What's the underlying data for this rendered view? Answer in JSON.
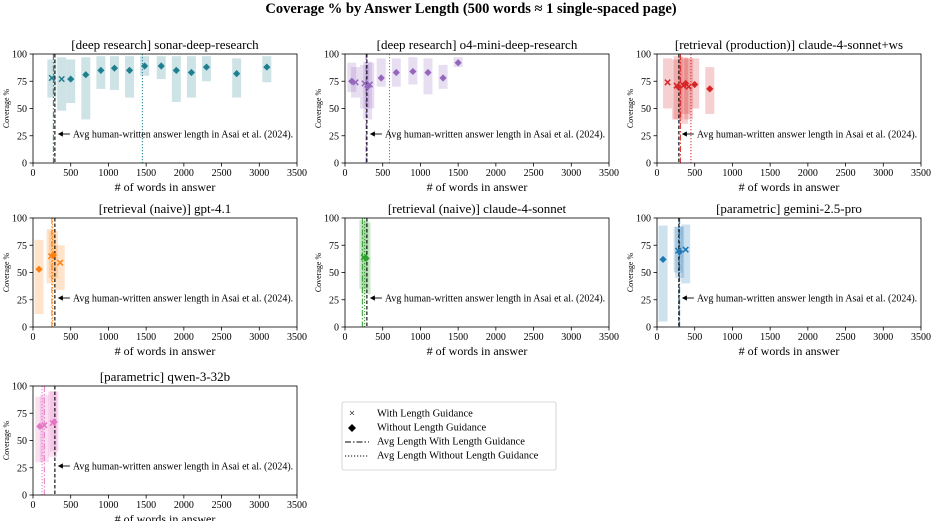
{
  "figure_title": "Coverage % by Answer Length (500 words ≈ 1 single-spaced page)",
  "annotation_text": "Avg human-written answer length in Asai et al. (2024).",
  "human_avg_words": 290,
  "legend": {
    "with_guidance": "With Length Guidance",
    "without_guidance": "Without Length Guidance",
    "avg_with": "Avg Length With Length Guidance",
    "avg_without": "Avg Length Without Length Guidance"
  },
  "chart_data": [
    {
      "type": "scatter",
      "title": "[deep research] sonar-deep-research",
      "xlabel": "# of words in answer",
      "ylabel": "Coverage %",
      "xlim": [
        0,
        3500
      ],
      "ylim": [
        0,
        100
      ],
      "xticks": [
        0,
        500,
        1000,
        1500,
        2000,
        2500,
        3000,
        3500
      ],
      "yticks": [
        0,
        25,
        50,
        75,
        100
      ],
      "color": "#1f7f8f",
      "avg_with": 270,
      "avg_without": 1450,
      "with_guidance": [
        {
          "x": 250,
          "y": 78,
          "lo": 60,
          "hi": 95
        },
        {
          "x": 380,
          "y": 77,
          "lo": 48,
          "hi": 97
        }
      ],
      "without_guidance": [
        {
          "x": 500,
          "y": 77,
          "lo": 55,
          "hi": 95
        },
        {
          "x": 700,
          "y": 81,
          "lo": 40,
          "hi": 97
        },
        {
          "x": 900,
          "y": 85,
          "lo": 68,
          "hi": 98
        },
        {
          "x": 1080,
          "y": 87,
          "lo": 67,
          "hi": 98
        },
        {
          "x": 1280,
          "y": 85,
          "lo": 60,
          "hi": 98
        },
        {
          "x": 1480,
          "y": 89,
          "lo": 80,
          "hi": 98
        },
        {
          "x": 1700,
          "y": 89,
          "lo": 77,
          "hi": 98
        },
        {
          "x": 1900,
          "y": 85,
          "lo": 56,
          "hi": 98
        },
        {
          "x": 2100,
          "y": 83,
          "lo": 60,
          "hi": 98
        },
        {
          "x": 2300,
          "y": 88,
          "lo": 75,
          "hi": 98
        },
        {
          "x": 2700,
          "y": 82,
          "lo": 60,
          "hi": 96
        },
        {
          "x": 3100,
          "y": 88,
          "lo": 74,
          "hi": 98
        }
      ]
    },
    {
      "type": "scatter",
      "title": "[deep research] o4-mini-deep-research",
      "xlabel": "# of words in answer",
      "ylabel": "Coverage %",
      "xlim": [
        0,
        3500
      ],
      "ylim": [
        0,
        100
      ],
      "xticks": [
        0,
        500,
        1000,
        1500,
        2000,
        2500,
        3000,
        3500
      ],
      "yticks": [
        0,
        25,
        50,
        75,
        100
      ],
      "color": "#9467bd",
      "avg_with": 280,
      "avg_without": 590,
      "with_guidance": [
        {
          "x": 140,
          "y": 74,
          "lo": 60,
          "hi": 88
        },
        {
          "x": 260,
          "y": 73,
          "lo": 50,
          "hi": 90
        },
        {
          "x": 330,
          "y": 72,
          "lo": 50,
          "hi": 92
        }
      ],
      "without_guidance": [
        {
          "x": 90,
          "y": 75,
          "lo": 65,
          "hi": 92
        },
        {
          "x": 300,
          "y": 70,
          "lo": 40,
          "hi": 93
        },
        {
          "x": 480,
          "y": 78,
          "lo": 70,
          "hi": 96
        },
        {
          "x": 680,
          "y": 83,
          "lo": 70,
          "hi": 96
        },
        {
          "x": 900,
          "y": 84,
          "lo": 72,
          "hi": 97
        },
        {
          "x": 1100,
          "y": 83,
          "lo": 63,
          "hi": 96
        },
        {
          "x": 1300,
          "y": 78,
          "lo": 68,
          "hi": 90
        },
        {
          "x": 1500,
          "y": 92,
          "lo": 88,
          "hi": 97
        }
      ]
    },
    {
      "type": "scatter",
      "title": "[retrieval (production)] claude-4-sonnet+ws",
      "xlabel": "# of words in answer",
      "ylabel": "Coverage %",
      "xlim": [
        0,
        3500
      ],
      "ylim": [
        0,
        100
      ],
      "xticks": [
        0,
        500,
        1000,
        1500,
        2000,
        2500,
        3000,
        3500
      ],
      "yticks": [
        0,
        25,
        50,
        75,
        100
      ],
      "color": "#d62728",
      "avg_with": 310,
      "avg_without": 450,
      "with_guidance": [
        {
          "x": 140,
          "y": 74,
          "lo": 50,
          "hi": 96
        },
        {
          "x": 260,
          "y": 71,
          "lo": 40,
          "hi": 95
        },
        {
          "x": 350,
          "y": 71,
          "lo": 36,
          "hi": 97
        },
        {
          "x": 420,
          "y": 70,
          "lo": 40,
          "hi": 96
        }
      ],
      "without_guidance": [
        {
          "x": 280,
          "y": 70,
          "lo": 40,
          "hi": 98
        },
        {
          "x": 380,
          "y": 73,
          "lo": 45,
          "hi": 96
        },
        {
          "x": 500,
          "y": 72,
          "lo": 50,
          "hi": 96
        },
        {
          "x": 700,
          "y": 68,
          "lo": 45,
          "hi": 88
        }
      ]
    },
    {
      "type": "scatter",
      "title": "[retrieval (naive)] gpt-4.1",
      "xlabel": "# of words in answer",
      "ylabel": "Coverage %",
      "xlim": [
        0,
        3500
      ],
      "ylim": [
        0,
        100
      ],
      "xticks": [
        0,
        500,
        1000,
        1500,
        2000,
        2500,
        3000,
        3500
      ],
      "yticks": [
        0,
        25,
        50,
        75,
        100
      ],
      "color": "#ff7f0e",
      "avg_with": 250,
      "avg_without": 260,
      "with_guidance": [
        {
          "x": 240,
          "y": 65,
          "lo": 40,
          "hi": 90
        },
        {
          "x": 360,
          "y": 59,
          "lo": 34,
          "hi": 75
        }
      ],
      "without_guidance": [
        {
          "x": 80,
          "y": 53,
          "lo": 12,
          "hi": 80
        },
        {
          "x": 270,
          "y": 66,
          "lo": 45,
          "hi": 88
        }
      ]
    },
    {
      "type": "scatter",
      "title": "[retrieval (naive)] claude-4-sonnet",
      "xlabel": "# of words in answer",
      "ylabel": "Coverage %",
      "xlim": [
        0,
        3500
      ],
      "ylim": [
        0,
        100
      ],
      "xticks": [
        0,
        500,
        1000,
        1500,
        2000,
        2500,
        3000,
        3500
      ],
      "yticks": [
        0,
        25,
        50,
        75,
        100
      ],
      "color": "#2ca02c",
      "avg_with": 230,
      "avg_without": 260,
      "with_guidance": [
        {
          "x": 250,
          "y": 64,
          "lo": 35,
          "hi": 98
        }
      ],
      "without_guidance": [
        {
          "x": 280,
          "y": 63,
          "lo": 30,
          "hi": 96
        }
      ]
    },
    {
      "type": "scatter",
      "title": "[parametric] gemini-2.5-pro",
      "xlabel": "# of words in answer",
      "ylabel": "Coverage %",
      "xlim": [
        0,
        3500
      ],
      "ylim": [
        0,
        100
      ],
      "xticks": [
        0,
        500,
        1000,
        1500,
        2000,
        2500,
        3000,
        3500
      ],
      "yticks": [
        0,
        25,
        50,
        75,
        100
      ],
      "color": "#1f77b4",
      "avg_with": 300,
      "avg_without": 290,
      "with_guidance": [
        {
          "x": 280,
          "y": 70,
          "lo": 50,
          "hi": 92
        },
        {
          "x": 380,
          "y": 71,
          "lo": 40,
          "hi": 94
        }
      ],
      "without_guidance": [
        {
          "x": 80,
          "y": 62,
          "lo": 5,
          "hi": 93
        },
        {
          "x": 300,
          "y": 69,
          "lo": 45,
          "hi": 92
        }
      ]
    },
    {
      "type": "scatter",
      "title": "[parametric] qwen-3-32b",
      "xlabel": "# of words in answer",
      "ylabel": "Coverage %",
      "xlim": [
        0,
        3500
      ],
      "ylim": [
        0,
        100
      ],
      "xticks": [
        0,
        500,
        1000,
        1500,
        2000,
        2500,
        3000,
        3500
      ],
      "yticks": [
        0,
        25,
        50,
        75,
        100
      ],
      "color": "#e377c2",
      "avg_with": 150,
      "avg_without": 120,
      "with_guidance": [
        {
          "x": 150,
          "y": 64,
          "lo": 30,
          "hi": 92
        },
        {
          "x": 260,
          "y": 66,
          "lo": 35,
          "hi": 95
        }
      ],
      "without_guidance": [
        {
          "x": 90,
          "y": 63,
          "lo": 30,
          "hi": 90
        },
        {
          "x": 280,
          "y": 67,
          "lo": 40,
          "hi": 95
        }
      ]
    }
  ]
}
